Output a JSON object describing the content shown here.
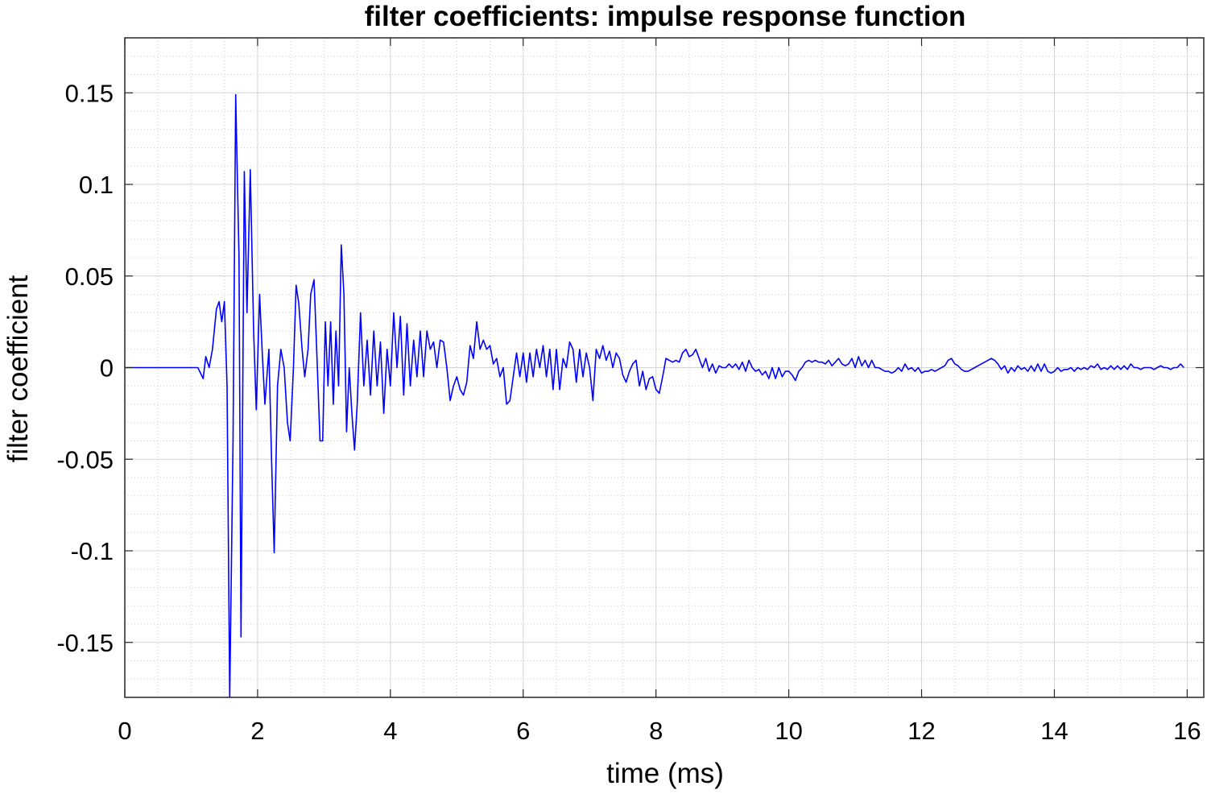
{
  "chart_data": {
    "type": "line",
    "title": "filter coefficients: impulse response function",
    "xlabel": "time (ms)",
    "ylabel": "filter coefficient",
    "xlim": [
      0,
      16.25
    ],
    "ylim": [
      -0.18,
      0.18
    ],
    "grid": true,
    "minor_grid": true,
    "x_ticks": [
      0,
      2,
      4,
      6,
      8,
      10,
      12,
      14,
      16
    ],
    "x_tick_labels": [
      "0",
      "2",
      "4",
      "6",
      "8",
      "10",
      "12",
      "14",
      "16"
    ],
    "y_ticks": [
      0.15,
      0.1,
      0.05,
      0,
      -0.05,
      -0.1,
      -0.15
    ],
    "y_tick_labels": [
      "0.15",
      "0.1",
      "0.05",
      "0",
      "-0.05",
      "-0.1",
      "-0.15"
    ],
    "series": [
      {
        "color": "#0000ff",
        "points": [
          [
            0,
            0
          ],
          [
            1.0,
            0
          ],
          [
            1.1,
            0
          ],
          [
            1.18,
            -0.006
          ],
          [
            1.22,
            0.006
          ],
          [
            1.27,
            0.0
          ],
          [
            1.32,
            0.01
          ],
          [
            1.38,
            0.032
          ],
          [
            1.42,
            0.036
          ],
          [
            1.46,
            0.025
          ],
          [
            1.5,
            0.036
          ],
          [
            1.54,
            -0.01
          ],
          [
            1.58,
            -0.18
          ],
          [
            1.63,
            -0.04
          ],
          [
            1.67,
            0.149
          ],
          [
            1.72,
            0.06
          ],
          [
            1.75,
            -0.147
          ],
          [
            1.8,
            0.107
          ],
          [
            1.84,
            0.03
          ],
          [
            1.89,
            0.108
          ],
          [
            1.94,
            0.02
          ],
          [
            1.98,
            -0.023
          ],
          [
            2.03,
            0.04
          ],
          [
            2.07,
            0.008
          ],
          [
            2.11,
            -0.02
          ],
          [
            2.17,
            0.01
          ],
          [
            2.21,
            -0.05
          ],
          [
            2.25,
            -0.101
          ],
          [
            2.3,
            -0.01
          ],
          [
            2.35,
            0.01
          ],
          [
            2.4,
            0.0
          ],
          [
            2.45,
            -0.03
          ],
          [
            2.49,
            -0.04
          ],
          [
            2.54,
            0.0
          ],
          [
            2.58,
            0.045
          ],
          [
            2.62,
            0.035
          ],
          [
            2.67,
            0.01
          ],
          [
            2.71,
            -0.005
          ],
          [
            2.76,
            0.01
          ],
          [
            2.8,
            0.04
          ],
          [
            2.85,
            0.048
          ],
          [
            2.9,
            0.0
          ],
          [
            2.94,
            -0.04
          ],
          [
            2.98,
            -0.04
          ],
          [
            3.02,
            0.025
          ],
          [
            3.06,
            -0.01
          ],
          [
            3.1,
            0.025
          ],
          [
            3.14,
            -0.02
          ],
          [
            3.18,
            0.02
          ],
          [
            3.22,
            -0.01
          ],
          [
            3.26,
            0.067
          ],
          [
            3.3,
            0.04
          ],
          [
            3.34,
            -0.035
          ],
          [
            3.38,
            0.0
          ],
          [
            3.42,
            -0.025
          ],
          [
            3.46,
            -0.045
          ],
          [
            3.5,
            -0.02
          ],
          [
            3.55,
            0.03
          ],
          [
            3.6,
            -0.01
          ],
          [
            3.65,
            0.015
          ],
          [
            3.7,
            -0.015
          ],
          [
            3.75,
            0.02
          ],
          [
            3.8,
            -0.01
          ],
          [
            3.85,
            0.014
          ],
          [
            3.9,
            -0.025
          ],
          [
            3.95,
            0.01
          ],
          [
            4.0,
            -0.01
          ],
          [
            4.05,
            0.03
          ],
          [
            4.1,
            0.0
          ],
          [
            4.15,
            0.028
          ],
          [
            4.2,
            -0.015
          ],
          [
            4.25,
            0.024
          ],
          [
            4.3,
            -0.01
          ],
          [
            4.35,
            0.015
          ],
          [
            4.4,
            -0.005
          ],
          [
            4.45,
            0.02
          ],
          [
            4.5,
            -0.005
          ],
          [
            4.55,
            0.02
          ],
          [
            4.6,
            0.01
          ],
          [
            4.65,
            0.014
          ],
          [
            4.7,
            0.0
          ],
          [
            4.75,
            0.015
          ],
          [
            4.8,
            0.014
          ],
          [
            4.85,
            0.0
          ],
          [
            4.9,
            -0.018
          ],
          [
            4.95,
            -0.01
          ],
          [
            5.0,
            -0.005
          ],
          [
            5.05,
            -0.012
          ],
          [
            5.1,
            -0.015
          ],
          [
            5.15,
            -0.008
          ],
          [
            5.2,
            0.012
          ],
          [
            5.25,
            0.005
          ],
          [
            5.3,
            0.025
          ],
          [
            5.35,
            0.01
          ],
          [
            5.4,
            0.015
          ],
          [
            5.45,
            0.01
          ],
          [
            5.5,
            0.012
          ],
          [
            5.55,
            0.002
          ],
          [
            5.6,
            0.005
          ],
          [
            5.65,
            -0.005
          ],
          [
            5.7,
            0.0
          ],
          [
            5.75,
            -0.02
          ],
          [
            5.8,
            -0.018
          ],
          [
            5.85,
            -0.005
          ],
          [
            5.9,
            0.008
          ],
          [
            5.95,
            -0.005
          ],
          [
            6.0,
            0.008
          ],
          [
            6.05,
            -0.008
          ],
          [
            6.1,
            0.008
          ],
          [
            6.15,
            -0.005
          ],
          [
            6.2,
            0.01
          ],
          [
            6.25,
            0.0
          ],
          [
            6.3,
            0.012
          ],
          [
            6.35,
            -0.005
          ],
          [
            6.4,
            0.01
          ],
          [
            6.45,
            -0.012
          ],
          [
            6.5,
            0.01
          ],
          [
            6.55,
            -0.012
          ],
          [
            6.6,
            0.005
          ],
          [
            6.65,
            0.0
          ],
          [
            6.7,
            0.014
          ],
          [
            6.75,
            0.01
          ],
          [
            6.8,
            -0.008
          ],
          [
            6.85,
            0.01
          ],
          [
            6.9,
            -0.005
          ],
          [
            6.95,
            0.008
          ],
          [
            7.0,
            0.0
          ],
          [
            7.05,
            -0.018
          ],
          [
            7.1,
            0.01
          ],
          [
            7.15,
            0.005
          ],
          [
            7.2,
            0.012
          ],
          [
            7.25,
            0.004
          ],
          [
            7.3,
            0.009
          ],
          [
            7.35,
            0.0
          ],
          [
            7.4,
            0.008
          ],
          [
            7.45,
            0.005
          ],
          [
            7.5,
            -0.004
          ],
          [
            7.55,
            -0.008
          ],
          [
            7.6,
            -0.002
          ],
          [
            7.65,
            0.002
          ],
          [
            7.7,
            0.004
          ],
          [
            7.75,
            -0.01
          ],
          [
            7.8,
            -0.002
          ],
          [
            7.85,
            -0.012
          ],
          [
            7.9,
            -0.006
          ],
          [
            7.95,
            -0.005
          ],
          [
            8.0,
            -0.012
          ],
          [
            8.05,
            -0.014
          ],
          [
            8.1,
            -0.005
          ],
          [
            8.15,
            0.005
          ],
          [
            8.2,
            0.004
          ],
          [
            8.25,
            0.003
          ],
          [
            8.3,
            0.004
          ],
          [
            8.35,
            0.003
          ],
          [
            8.4,
            0.008
          ],
          [
            8.45,
            0.01
          ],
          [
            8.5,
            0.006
          ],
          [
            8.55,
            0.007
          ],
          [
            8.6,
            0.01
          ],
          [
            8.65,
            0.005
          ],
          [
            8.7,
            0.0
          ],
          [
            8.75,
            0.005
          ],
          [
            8.8,
            -0.002
          ],
          [
            8.85,
            0.002
          ],
          [
            8.9,
            -0.003
          ],
          [
            8.95,
            0.001
          ],
          [
            9.0,
            0.0
          ],
          [
            9.05,
            0.0
          ],
          [
            9.1,
            0.002
          ],
          [
            9.15,
            0.0
          ],
          [
            9.2,
            0.002
          ],
          [
            9.25,
            -0.001
          ],
          [
            9.3,
            0.003
          ],
          [
            9.35,
            -0.002
          ],
          [
            9.4,
            0.004
          ],
          [
            9.45,
            0.0
          ],
          [
            9.5,
            -0.002
          ],
          [
            9.55,
            -0.001
          ],
          [
            9.6,
            -0.004
          ],
          [
            9.65,
            -0.002
          ],
          [
            9.7,
            -0.006
          ],
          [
            9.75,
            0.0
          ],
          [
            9.8,
            -0.006
          ],
          [
            9.85,
            0.0
          ],
          [
            9.9,
            -0.005
          ],
          [
            9.95,
            -0.002
          ],
          [
            10.0,
            -0.002
          ],
          [
            10.05,
            -0.004
          ],
          [
            10.1,
            -0.007
          ],
          [
            10.15,
            -0.002
          ],
          [
            10.2,
            0.0
          ],
          [
            10.25,
            0.003
          ],
          [
            10.3,
            0.004
          ],
          [
            10.35,
            0.003
          ],
          [
            10.4,
            0.004
          ],
          [
            10.45,
            0.003
          ],
          [
            10.5,
            0.003
          ],
          [
            10.55,
            0.002
          ],
          [
            10.6,
            0.004
          ],
          [
            10.65,
            0.001
          ],
          [
            10.7,
            0.003
          ],
          [
            10.75,
            0.005
          ],
          [
            10.8,
            0.002
          ],
          [
            10.85,
            0.001
          ],
          [
            10.9,
            0.002
          ],
          [
            10.95,
            0.005
          ],
          [
            11.0,
            0.0
          ],
          [
            11.05,
            0.006
          ],
          [
            11.1,
            0.001
          ],
          [
            11.15,
            0.004
          ],
          [
            11.2,
            0.0
          ],
          [
            11.25,
            0.004
          ],
          [
            11.3,
            0.0
          ],
          [
            11.35,
            0.0
          ],
          [
            11.4,
            -0.001
          ],
          [
            11.45,
            -0.002
          ],
          [
            11.5,
            -0.002
          ],
          [
            11.55,
            -0.003
          ],
          [
            11.6,
            -0.002
          ],
          [
            11.65,
            0.0
          ],
          [
            11.7,
            -0.002
          ],
          [
            11.75,
            0.002
          ],
          [
            11.8,
            -0.001
          ],
          [
            11.85,
            0.0
          ],
          [
            11.9,
            -0.002
          ],
          [
            11.95,
            0.0
          ],
          [
            12.0,
            -0.003
          ],
          [
            12.05,
            -0.002
          ],
          [
            12.1,
            -0.002
          ],
          [
            12.15,
            -0.001
          ],
          [
            12.2,
            -0.002
          ],
          [
            12.25,
            -0.001
          ],
          [
            12.3,
            0.0
          ],
          [
            12.35,
            0.001
          ],
          [
            12.4,
            0.004
          ],
          [
            12.45,
            0.005
          ],
          [
            12.5,
            0.002
          ],
          [
            12.55,
            0.001
          ],
          [
            12.6,
            -0.001
          ],
          [
            12.65,
            -0.002
          ],
          [
            12.7,
            -0.002
          ],
          [
            12.75,
            -0.001
          ],
          [
            12.8,
            0.0
          ],
          [
            12.85,
            0.001
          ],
          [
            12.9,
            0.002
          ],
          [
            12.95,
            0.003
          ],
          [
            13.0,
            0.004
          ],
          [
            13.05,
            0.005
          ],
          [
            13.1,
            0.004
          ],
          [
            13.15,
            0.002
          ],
          [
            13.2,
            -0.001
          ],
          [
            13.25,
            0.001
          ],
          [
            13.3,
            -0.003
          ],
          [
            13.35,
            0.0
          ],
          [
            13.4,
            -0.002
          ],
          [
            13.45,
            0.001
          ],
          [
            13.5,
            -0.001
          ],
          [
            13.55,
            0.0
          ],
          [
            13.6,
            -0.002
          ],
          [
            13.65,
            0.001
          ],
          [
            13.7,
            -0.002
          ],
          [
            13.75,
            0.002
          ],
          [
            13.8,
            -0.002
          ],
          [
            13.85,
            0.002
          ],
          [
            13.9,
            -0.002
          ],
          [
            13.95,
            -0.003
          ],
          [
            14.0,
            -0.002
          ],
          [
            14.05,
            0.0
          ],
          [
            14.1,
            -0.002
          ],
          [
            14.15,
            -0.001
          ],
          [
            14.2,
            -0.001
          ],
          [
            14.25,
            0.0
          ],
          [
            14.3,
            -0.002
          ],
          [
            14.35,
            0.0
          ],
          [
            14.4,
            -0.001
          ],
          [
            14.45,
            0.0
          ],
          [
            14.5,
            -0.001
          ],
          [
            14.55,
            0.001
          ],
          [
            14.6,
            0.0
          ],
          [
            14.65,
            0.002
          ],
          [
            14.7,
            -0.001
          ],
          [
            14.75,
            0.0
          ],
          [
            14.8,
            -0.001
          ],
          [
            14.85,
            0.001
          ],
          [
            14.9,
            -0.001
          ],
          [
            14.95,
            0.001
          ],
          [
            15.0,
            -0.001
          ],
          [
            15.05,
            0.001
          ],
          [
            15.1,
            -0.001
          ],
          [
            15.15,
            0.002
          ],
          [
            15.2,
            0.0
          ],
          [
            15.25,
            0.0
          ],
          [
            15.3,
            -0.001
          ],
          [
            15.35,
            0.0
          ],
          [
            15.4,
            0.0
          ],
          [
            15.45,
            0.0
          ],
          [
            15.5,
            -0.001
          ],
          [
            15.55,
            0.0
          ],
          [
            15.6,
            0.001
          ],
          [
            15.65,
            0.0
          ],
          [
            15.7,
            0.0
          ],
          [
            15.75,
            -0.001
          ],
          [
            15.8,
            0.0
          ],
          [
            15.85,
            0.0
          ],
          [
            15.9,
            0.002
          ],
          [
            15.95,
            0.0
          ]
        ]
      }
    ]
  }
}
